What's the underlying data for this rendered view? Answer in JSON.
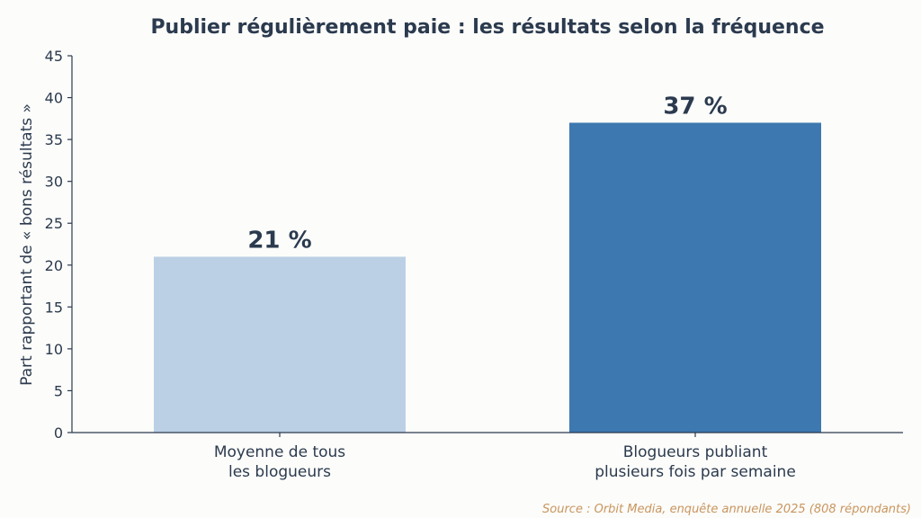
{
  "chart_data": {
    "type": "bar",
    "title": "Publier régulièrement paie : les résultats selon la fréquence",
    "ylabel": "Part rapportant de « bons résultats »",
    "xlabel": "",
    "ylim": [
      0,
      45
    ],
    "yticks": [
      0,
      5,
      10,
      15,
      20,
      25,
      30,
      35,
      40,
      45
    ],
    "categories": [
      [
        "Moyenne de tous",
        "les blogueurs"
      ],
      [
        "Blogueurs publiant",
        "plusieurs fois par semaine"
      ]
    ],
    "values": [
      21,
      37
    ],
    "value_labels": [
      "21 %",
      "37 %"
    ],
    "colors": [
      "#bcd0e5",
      "#3d78b0"
    ],
    "grid": false,
    "legend": "none",
    "source": "Source : Orbit Media, enquête annuelle 2025 (808 répondants)"
  }
}
